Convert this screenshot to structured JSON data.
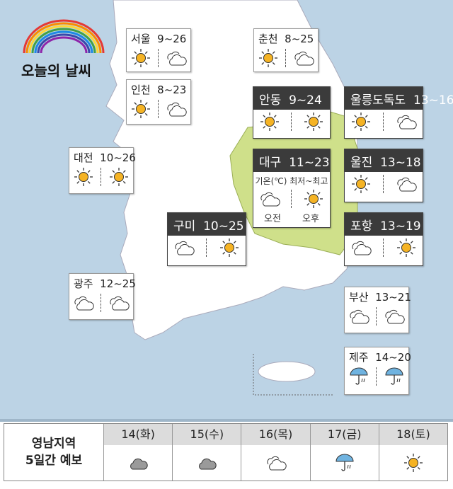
{
  "title": "오늘의 날씨",
  "colors": {
    "sea": "#bcd3e5",
    "land": "#ffffff",
    "yeongnam": "#cfe08a",
    "header": "#3b3b3b",
    "sun": "#f5b324",
    "rain": "#6fb3e0"
  },
  "cities": [
    {
      "name": "서울",
      "temp": "9~26",
      "am": "sun",
      "pm": "partly-cloudy",
      "style": "light"
    },
    {
      "name": "인천",
      "temp": "8~23",
      "am": "sun",
      "pm": "partly-cloudy",
      "style": "light"
    },
    {
      "name": "춘천",
      "temp": "8~25",
      "am": "sun",
      "pm": "partly-cloudy",
      "style": "light"
    },
    {
      "name": "대전",
      "temp": "10~26",
      "am": "sun",
      "pm": "sun",
      "style": "light"
    },
    {
      "name": "광주",
      "temp": "12~25",
      "am": "partly-cloudy",
      "pm": "partly-cloudy",
      "style": "light"
    },
    {
      "name": "부산",
      "temp": "13~21",
      "am": "partly-cloudy",
      "pm": "partly-cloudy",
      "style": "light"
    },
    {
      "name": "제주",
      "temp": "14~20",
      "am": "rain",
      "pm": "rain",
      "style": "light"
    },
    {
      "name": "안동",
      "temp": "9~24",
      "am": "sun",
      "pm": "sun",
      "style": "dark"
    },
    {
      "name": "울릉도독도",
      "temp": "13~16",
      "am": "sun",
      "pm": "partly-cloudy",
      "style": "dark"
    },
    {
      "name": "대구",
      "temp": "11~23",
      "am": "partly-cloudy",
      "pm": "sun",
      "style": "dark",
      "legend": "기온(℃) 최저~최고",
      "am_label": "오전",
      "pm_label": "오후"
    },
    {
      "name": "울진",
      "temp": "13~18",
      "am": "sun",
      "pm": "partly-cloudy",
      "style": "dark"
    },
    {
      "name": "구미",
      "temp": "10~25",
      "am": "partly-cloudy",
      "pm": "sun",
      "style": "dark"
    },
    {
      "name": "포항",
      "temp": "13~19",
      "am": "partly-cloudy",
      "pm": "sun",
      "style": "dark"
    }
  ],
  "forecast": {
    "label_line1": "영남지역",
    "label_line2": "5일간 예보",
    "days": [
      {
        "date": "14(화)",
        "icon": "cloudy"
      },
      {
        "date": "15(수)",
        "icon": "cloudy"
      },
      {
        "date": "16(목)",
        "icon": "partly-cloudy"
      },
      {
        "date": "17(금)",
        "icon": "rain"
      },
      {
        "date": "18(토)",
        "icon": "sun"
      }
    ]
  }
}
